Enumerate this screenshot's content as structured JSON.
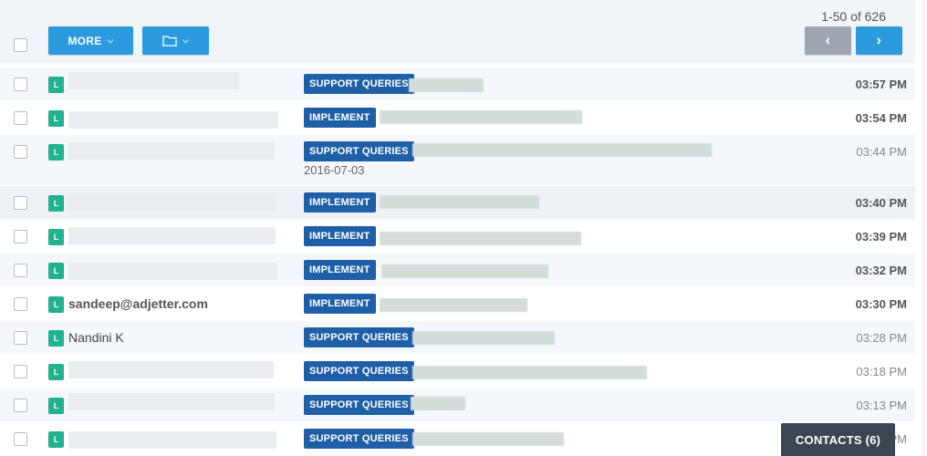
{
  "toolbar": {
    "more_label": "MORE",
    "folder_icon": "folder-icon",
    "pagination": "1-50 of 626",
    "prev_icon": "‹",
    "next_icon": "›"
  },
  "rows": [
    {
      "badge": "L",
      "sender": "",
      "tag": "SUPPORT QUERIES",
      "date": "",
      "time": "03:57 PM",
      "unread": true
    },
    {
      "badge": "L",
      "sender": "",
      "tag": "IMPLEMENT",
      "date": "",
      "time": "03:54 PM",
      "unread": true
    },
    {
      "badge": "L",
      "sender": "",
      "tag": "SUPPORT QUERIES",
      "date": "2016-07-03",
      "time": "03:44 PM",
      "unread": false
    },
    {
      "badge": "L",
      "sender": "",
      "tag": "IMPLEMENT",
      "date": "",
      "time": "03:40 PM",
      "unread": true
    },
    {
      "badge": "L",
      "sender": "",
      "tag": "IMPLEMENT",
      "date": "",
      "time": "03:39 PM",
      "unread": true
    },
    {
      "badge": "L",
      "sender": "",
      "tag": "IMPLEMENT",
      "date": "",
      "time": "03:32 PM",
      "unread": true
    },
    {
      "badge": "L",
      "sender": "sandeep@adjetter.com",
      "tag": "IMPLEMENT",
      "date": "",
      "time": "03:30 PM",
      "unread": true
    },
    {
      "badge": "L",
      "sender": "Nandini K",
      "tag": "SUPPORT QUERIES",
      "date": "",
      "time": "03:28 PM",
      "unread": false
    },
    {
      "badge": "L",
      "sender": "",
      "tag": "SUPPORT QUERIES",
      "date": "",
      "time": "03:18 PM",
      "unread": false
    },
    {
      "badge": "L",
      "sender": "",
      "tag": "SUPPORT QUERIES",
      "date": "",
      "time": "03:13 PM",
      "unread": false
    },
    {
      "badge": "L",
      "sender": "",
      "tag": "SUPPORT QUERIES",
      "date": "",
      "time": "03:08 PM",
      "unread": false
    }
  ],
  "contacts_button": "CONTACTS (6)",
  "colors": {
    "primary": "#2c9ade",
    "tag": "#1f5fa8",
    "badge": "#22b28f",
    "contacts_bg": "#3c4552"
  }
}
